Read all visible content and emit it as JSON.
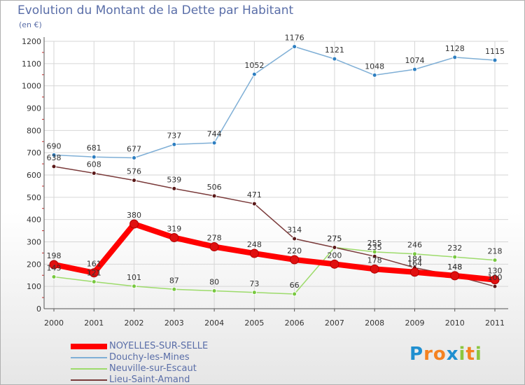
{
  "title": "Evolution du Montant de la Dette par Habitant",
  "unit": "(en €)",
  "brand": {
    "letters": [
      "P",
      "r",
      "o",
      "x",
      "i",
      "t",
      "i"
    ],
    "colors": [
      "#1f8fd0",
      "#f58220",
      "#f58220",
      "#1f8fd0",
      "#8cc63f",
      "#f58220",
      "#8cc63f"
    ]
  },
  "chart_data": {
    "type": "line",
    "title": "Evolution du Montant de la Dette par Habitant",
    "ylabel": "(en €)",
    "xlabel": "",
    "x": [
      2000,
      2001,
      2002,
      2003,
      2004,
      2005,
      2006,
      2007,
      2008,
      2009,
      2010,
      2011
    ],
    "ylim": [
      0,
      1200
    ],
    "yticks": [
      0,
      100,
      200,
      300,
      400,
      500,
      600,
      700,
      800,
      900,
      1000,
      1100,
      1200
    ],
    "grid": true,
    "legend": "bottom-left",
    "series": [
      {
        "name": "NOYELLES-SUR-SELLE",
        "color": "#ff0000",
        "point_color": "#cc1010",
        "values": [
          198,
          161,
          380,
          319,
          278,
          248,
          220,
          200,
          178,
          164,
          148,
          130
        ]
      },
      {
        "name": "Douchy-les-Mines",
        "color": "#7fafd6",
        "point_color": "#2e7fc1",
        "values": [
          690,
          681,
          677,
          737,
          744,
          1052,
          1176,
          1121,
          1048,
          1074,
          1128,
          1115
        ]
      },
      {
        "name": "Neuville-sur-Escaut",
        "color": "#9ddb6b",
        "point_color": "#78c840",
        "values": [
          143,
          121,
          101,
          87,
          80,
          73,
          66,
          275,
          255,
          246,
          232,
          218
        ]
      },
      {
        "name": "Lieu-Saint-Amand",
        "color": "#7a3a3a",
        "point_color": "#5a1818",
        "values": [
          638,
          608,
          576,
          539,
          506,
          471,
          314,
          275,
          235,
          184,
          148,
          100
        ]
      }
    ]
  }
}
